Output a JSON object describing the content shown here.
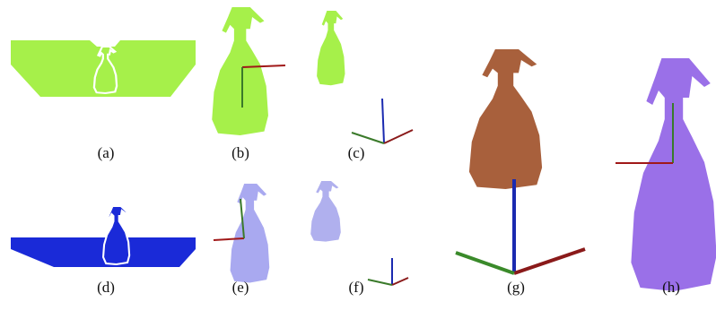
{
  "labels": [
    "(a)",
    "(b)",
    "(c)",
    "(d)",
    "(e)",
    "(f)",
    "(g)",
    "(h)"
  ]
}
